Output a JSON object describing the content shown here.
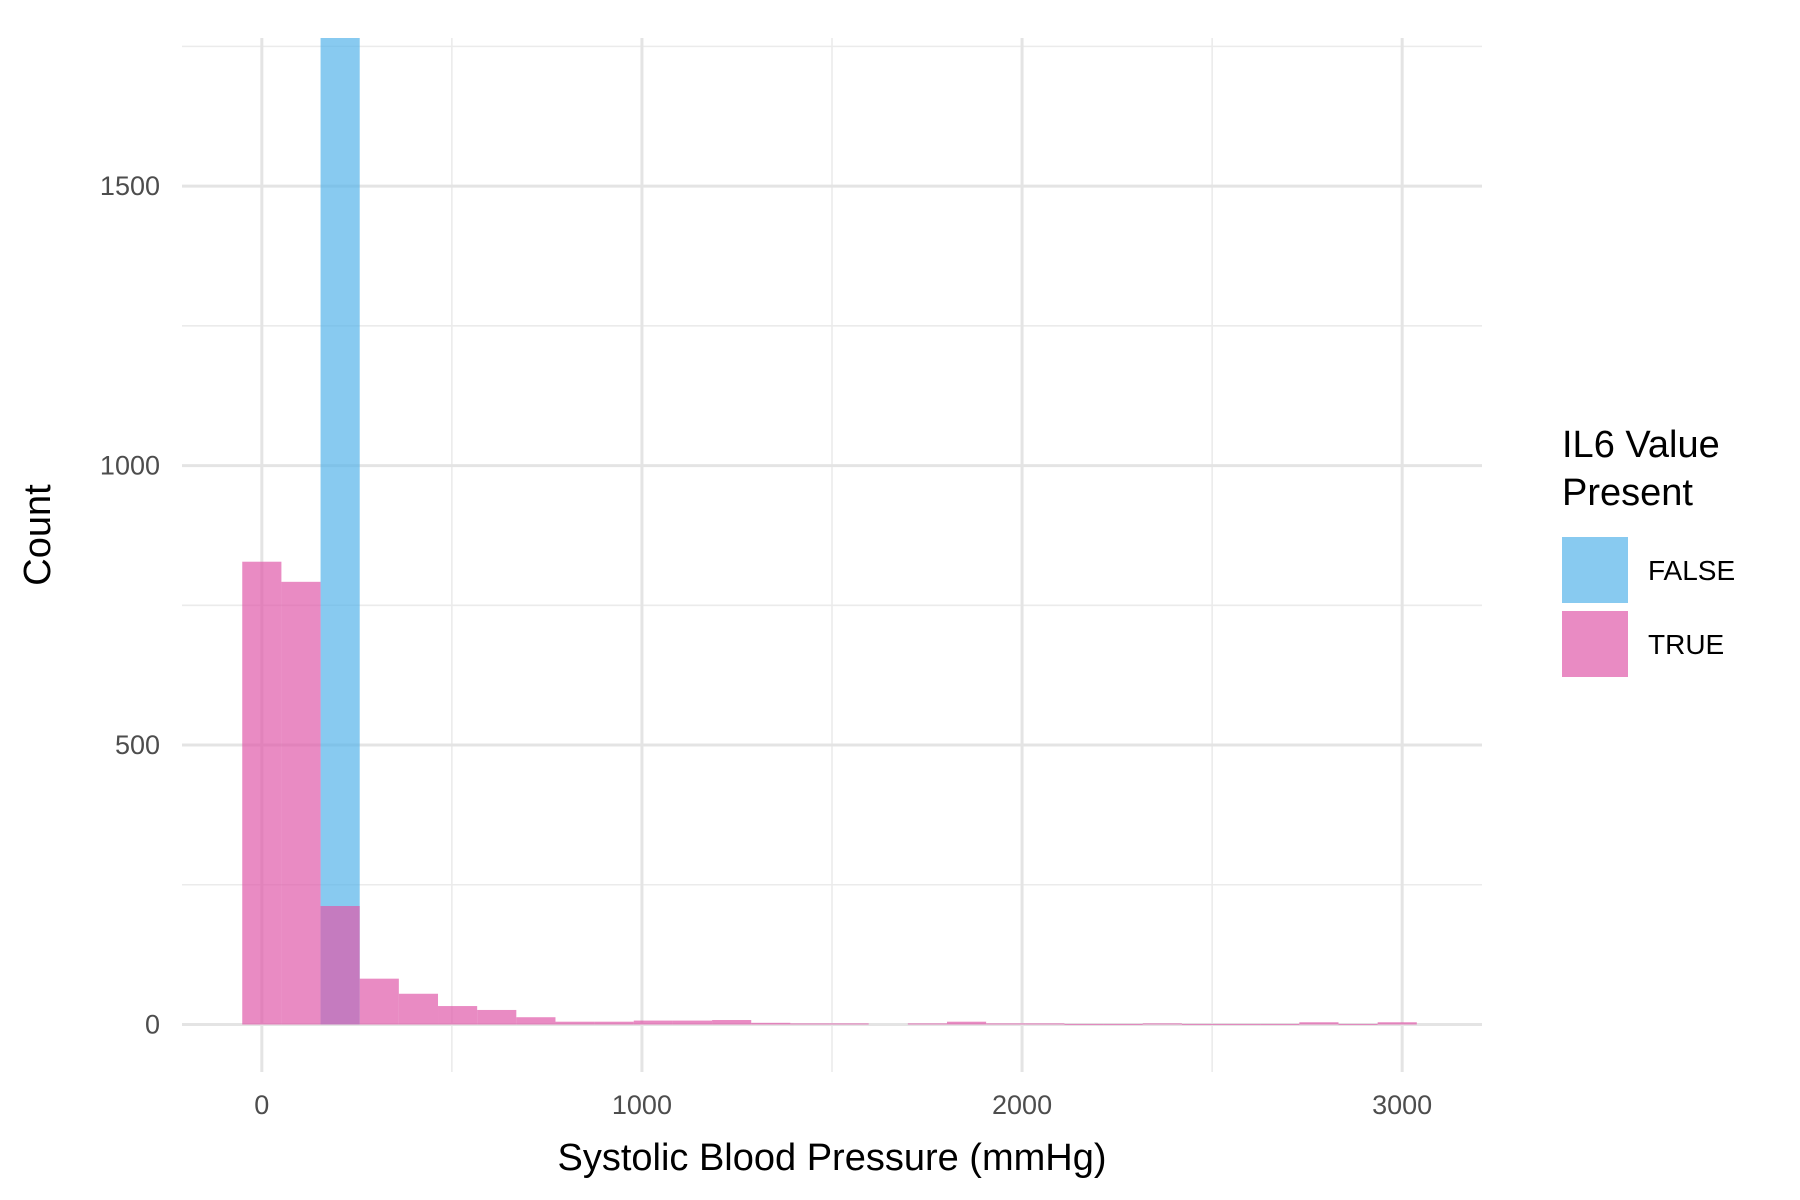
{
  "chart_data": {
    "type": "bar",
    "subtype": "overlapping-histogram",
    "xlabel": "Systolic Blood Pressure (mmHg)",
    "ylabel": "Count",
    "xlim": [
      -210,
      3210
    ],
    "ylim": [
      -85,
      1765
    ],
    "x_ticks": [
      0,
      1000,
      2000,
      3000
    ],
    "x_tick_labels": [
      "0",
      "1000",
      "2000",
      "3000"
    ],
    "y_ticks": [
      0,
      500,
      1000,
      1500
    ],
    "y_tick_labels": [
      "0",
      "500",
      "1000",
      "1500"
    ],
    "grid": true,
    "bin_width": 103,
    "legend": {
      "title_lines": [
        "IL6 Value",
        "Present"
      ],
      "placement": "right",
      "entries": [
        {
          "label": "FALSE",
          "color": "#56B4E9"
        },
        {
          "label": "TRUE",
          "color": "#E05AAA"
        }
      ]
    },
    "series": [
      {
        "name": "FALSE",
        "color": "#56B4E9",
        "bins": [
          {
            "x": 206,
            "count": 1765
          }
        ]
      },
      {
        "name": "TRUE",
        "color": "#E05AAA",
        "bins": [
          {
            "x": 0,
            "count": 828
          },
          {
            "x": 103,
            "count": 792
          },
          {
            "x": 206,
            "count": 212
          },
          {
            "x": 309,
            "count": 82
          },
          {
            "x": 412,
            "count": 55
          },
          {
            "x": 515,
            "count": 33
          },
          {
            "x": 618,
            "count": 26
          },
          {
            "x": 721,
            "count": 13
          },
          {
            "x": 824,
            "count": 5
          },
          {
            "x": 927,
            "count": 5
          },
          {
            "x": 1030,
            "count": 7
          },
          {
            "x": 1133,
            "count": 7
          },
          {
            "x": 1236,
            "count": 8
          },
          {
            "x": 1339,
            "count": 3
          },
          {
            "x": 1442,
            "count": 2
          },
          {
            "x": 1545,
            "count": 2
          },
          {
            "x": 1648,
            "count": 0
          },
          {
            "x": 1751,
            "count": 2
          },
          {
            "x": 1854,
            "count": 5
          },
          {
            "x": 1957,
            "count": 2
          },
          {
            "x": 2060,
            "count": 2
          },
          {
            "x": 2163,
            "count": 1
          },
          {
            "x": 2266,
            "count": 1
          },
          {
            "x": 2369,
            "count": 2
          },
          {
            "x": 2472,
            "count": 1
          },
          {
            "x": 2575,
            "count": 1
          },
          {
            "x": 2678,
            "count": 1
          },
          {
            "x": 2781,
            "count": 4
          },
          {
            "x": 2884,
            "count": 1
          },
          {
            "x": 2987,
            "count": 4
          }
        ]
      }
    ]
  }
}
